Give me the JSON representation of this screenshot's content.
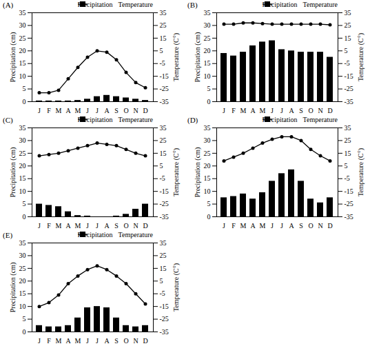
{
  "chart_data": [
    {
      "type": "bar",
      "title": "(A)",
      "categories": [
        "J",
        "F",
        "M",
        "A",
        "M",
        "J",
        "J",
        "A",
        "S",
        "O",
        "N",
        "D"
      ],
      "series": [
        {
          "name": "Precipitation",
          "type": "bar",
          "color": "#000000",
          "values": [
            0.3,
            0.3,
            0.3,
            0.3,
            0.5,
            1,
            2,
            2.5,
            2,
            1.5,
            1,
            0.5
          ]
        },
        {
          "name": "Temperature",
          "type": "line",
          "axis": "y2",
          "color": "#000000",
          "marker": "circle",
          "values": [
            -28,
            -28,
            -26,
            -17,
            -8,
            0,
            5,
            4,
            -2,
            -12,
            -20,
            -24
          ]
        }
      ],
      "y_label": "Precipitation (cm)",
      "y2_label": "Temperature (C°)",
      "ylim": [
        0,
        35
      ],
      "yticks": [
        0,
        5,
        10,
        15,
        20,
        25,
        30,
        35
      ],
      "y2lim": [
        -35,
        35
      ],
      "y2ticks": [
        -35,
        -25,
        -15,
        -5,
        5,
        15,
        25,
        35
      ],
      "legend": "top-right"
    },
    {
      "type": "bar",
      "title": "(B)",
      "categories": [
        "J",
        "F",
        "M",
        "A",
        "M",
        "J",
        "J",
        "A",
        "S",
        "O",
        "N",
        "D"
      ],
      "series": [
        {
          "name": "Precipitation",
          "type": "bar",
          "color": "#000000",
          "values": [
            19,
            18,
            19.5,
            22,
            23.5,
            24,
            20.5,
            20,
            19.5,
            19.5,
            19.5,
            17.5
          ]
        },
        {
          "name": "Temperature",
          "type": "line",
          "axis": "y2",
          "color": "#000000",
          "marker": "circle",
          "values": [
            26,
            26,
            27,
            27,
            26.5,
            26,
            26,
            26,
            26,
            26,
            26,
            25.5
          ]
        }
      ],
      "y_label": "Precipitation (cm)",
      "y2_label": "Temperature (C°)",
      "ylim": [
        0,
        35
      ],
      "yticks": [
        0,
        5,
        10,
        15,
        20,
        25,
        30,
        35
      ],
      "y2lim": [
        -35,
        35
      ],
      "y2ticks": [
        -35,
        -25,
        -15,
        -5,
        5,
        15,
        25,
        35
      ],
      "legend": "top-right"
    },
    {
      "type": "bar",
      "title": "(C)",
      "categories": [
        "J",
        "F",
        "M",
        "A",
        "M",
        "J",
        "J",
        "A",
        "S",
        "O",
        "N",
        "D"
      ],
      "series": [
        {
          "name": "Precipitation",
          "type": "bar",
          "color": "#000000",
          "values": [
            5,
            4.5,
            4,
            2,
            0.5,
            0.3,
            0,
            0,
            0.3,
            1,
            3,
            5
          ]
        },
        {
          "name": "Temperature",
          "type": "line",
          "axis": "y2",
          "color": "#000000",
          "marker": "circle",
          "values": [
            13,
            14,
            15,
            17,
            19,
            21,
            23,
            22,
            21,
            18,
            15,
            13
          ]
        }
      ],
      "y_label": "Precipitation (cm)",
      "y2_label": "Temperature (C°)",
      "ylim": [
        0,
        35
      ],
      "yticks": [
        0,
        5,
        10,
        15,
        20,
        25,
        30,
        35
      ],
      "y2lim": [
        -35,
        35
      ],
      "y2ticks": [
        -35,
        -25,
        -15,
        -5,
        5,
        15,
        25,
        35
      ],
      "legend": "top-right"
    },
    {
      "type": "bar",
      "title": "(D)",
      "categories": [
        "J",
        "F",
        "M",
        "A",
        "M",
        "J",
        "J",
        "A",
        "S",
        "O",
        "N",
        "D"
      ],
      "series": [
        {
          "name": "Precipitation",
          "type": "bar",
          "color": "#000000",
          "values": [
            7.5,
            8,
            9,
            7,
            9.5,
            14,
            17,
            18.5,
            14,
            7,
            5.5,
            7.5
          ]
        },
        {
          "name": "Temperature",
          "type": "line",
          "axis": "y2",
          "color": "#000000",
          "marker": "circle",
          "values": [
            9,
            12,
            15,
            19,
            23,
            26,
            28,
            28,
            25,
            18,
            13,
            9
          ]
        }
      ],
      "y_label": "Precipitation (cm)",
      "y2_label": "Temperature (C°)",
      "ylim": [
        0,
        35
      ],
      "yticks": [
        0,
        5,
        10,
        15,
        20,
        25,
        30,
        35
      ],
      "y2lim": [
        -35,
        35
      ],
      "y2ticks": [
        -35,
        -25,
        -15,
        -5,
        5,
        15,
        25,
        35
      ],
      "legend": "top-right"
    },
    {
      "type": "bar",
      "title": "(E)",
      "categories": [
        "J",
        "F",
        "M",
        "A",
        "M",
        "J",
        "J",
        "A",
        "S",
        "O",
        "N",
        "D"
      ],
      "series": [
        {
          "name": "Precipitation",
          "type": "bar",
          "color": "#000000",
          "values": [
            2.5,
            2,
            2,
            2.5,
            5.5,
            9.5,
            10,
            9.5,
            5.5,
            2.5,
            2,
            2.5
          ]
        },
        {
          "name": "Temperature",
          "type": "line",
          "axis": "y2",
          "color": "#000000",
          "marker": "circle",
          "values": [
            -15,
            -12,
            -6,
            3,
            9,
            14,
            17,
            14,
            9,
            3,
            -5,
            -13
          ]
        }
      ],
      "y_label": "Precipitation (cm)",
      "y2_label": "Temperature (C°)",
      "ylim": [
        0,
        35
      ],
      "yticks": [
        0,
        5,
        10,
        15,
        20,
        25,
        30,
        35
      ],
      "y2lim": [
        -35,
        35
      ],
      "y2ticks": [
        -35,
        -25,
        -15,
        -5,
        5,
        15,
        25,
        35
      ],
      "legend": "top-right"
    }
  ]
}
